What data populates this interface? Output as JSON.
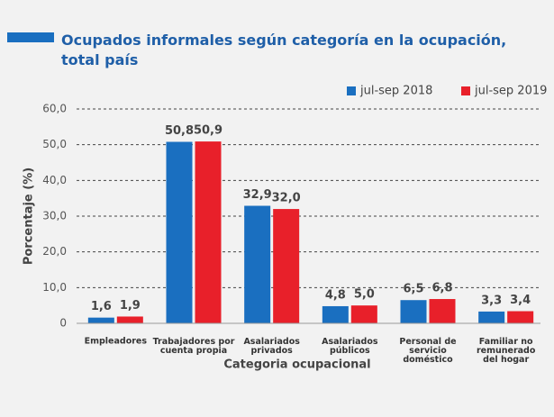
{
  "chart_data": {
    "type": "bar",
    "title": "Ocupados informales según categoría en la ocupación,\ntotal país",
    "xlabel": "Categoria ocupacional",
    "ylabel": "Porcentaje (%)",
    "categories": [
      "Empleadores",
      "Trabajadores por\ncuenta propia",
      "Asalariados\nprivados",
      "Asalariados\npúblicos",
      "Personal de\nservicio\ndoméstico",
      "Familiar no\nremunerado\ndel hogar"
    ],
    "series": [
      {
        "name": "jul-sep 2018",
        "color": "#1a6fc0",
        "values": [
          1.6,
          50.8,
          32.9,
          4.8,
          6.5,
          3.3
        ],
        "value_labels": [
          "1,6",
          "50,8",
          "32,9",
          "4,8",
          "6,5",
          "3,3"
        ]
      },
      {
        "name": "jul-sep 2019",
        "color": "#e8202a",
        "values": [
          1.9,
          50.9,
          32.0,
          5.0,
          6.8,
          3.4
        ],
        "value_labels": [
          "1,9",
          "50,9",
          "32,0",
          "5,0",
          "6,8",
          "3,4"
        ]
      }
    ],
    "ylim": [
      0,
      60
    ],
    "yticks": [
      0,
      {
        "value": 10,
        "label": "10,0"
      },
      {
        "value": 20,
        "label": "20,0"
      },
      {
        "value": 30,
        "label": "30,0"
      },
      {
        "value": 40,
        "label": "40,0"
      },
      {
        "value": 50,
        "label": "50,0"
      },
      {
        "value": 60,
        "label": "60,0"
      }
    ],
    "grid": true,
    "legend": "top-right"
  }
}
